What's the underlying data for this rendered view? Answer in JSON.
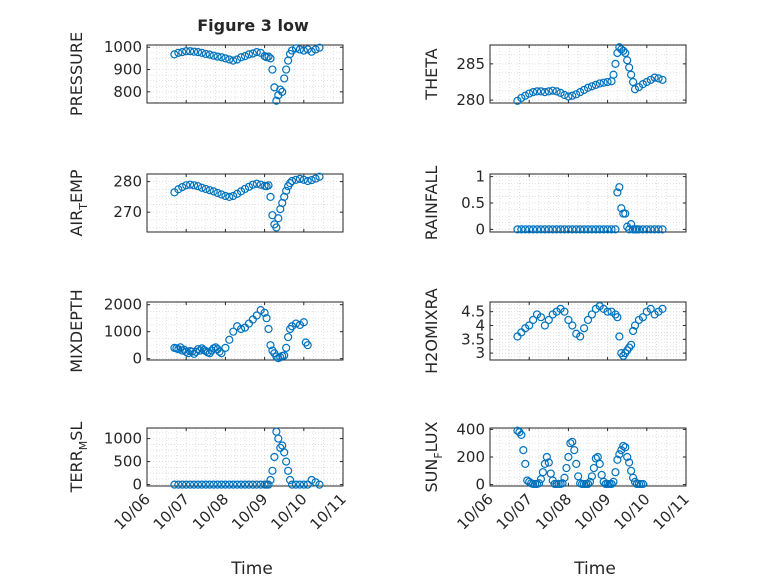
{
  "figure": {
    "title": "Figure 3 low",
    "xlabel": "Time",
    "time_ticks": [
      "10/06",
      "10/07",
      "10/08",
      "10/09",
      "10/10",
      "10/11"
    ],
    "marker_color": "#0072bd",
    "grid": true
  },
  "chart_data": [
    {
      "type": "scatter",
      "name": "pressure",
      "title": "Figure 3 low",
      "ylabel": "PRESSURE",
      "xlim": [
        0,
        5
      ],
      "ylim": [
        750,
        1010
      ],
      "yticks": [
        800,
        900,
        1000
      ],
      "x": [
        0.7,
        0.8,
        0.9,
        1.0,
        1.1,
        1.2,
        1.3,
        1.4,
        1.5,
        1.6,
        1.7,
        1.8,
        1.9,
        2.0,
        2.1,
        2.2,
        2.3,
        2.4,
        2.5,
        2.6,
        2.7,
        2.8,
        2.9,
        3.0,
        3.05,
        3.1,
        3.15,
        3.2,
        3.25,
        3.3,
        3.35,
        3.4,
        3.45,
        3.5,
        3.55,
        3.6,
        3.65,
        3.7,
        3.8,
        3.9,
        4.0,
        4.1,
        4.2,
        4.3,
        4.4
      ],
      "y": [
        968,
        975,
        978,
        982,
        982,
        980,
        978,
        975,
        970,
        967,
        962,
        958,
        955,
        950,
        945,
        940,
        945,
        955,
        960,
        968,
        972,
        978,
        975,
        960,
        955,
        958,
        950,
        900,
        820,
        760,
        785,
        810,
        800,
        860,
        900,
        940,
        970,
        985,
        995,
        990,
        985,
        990,
        980,
        990,
        998
      ]
    },
    {
      "type": "scatter",
      "name": "theta",
      "ylabel": "THETA",
      "xlim": [
        0,
        5
      ],
      "ylim": [
        279.6,
        287.6
      ],
      "yticks": [
        280,
        285
      ],
      "x": [
        0.7,
        0.8,
        0.9,
        1.0,
        1.1,
        1.2,
        1.3,
        1.4,
        1.5,
        1.6,
        1.7,
        1.8,
        1.9,
        2.0,
        2.1,
        2.2,
        2.3,
        2.4,
        2.5,
        2.6,
        2.7,
        2.8,
        2.9,
        3.0,
        3.1,
        3.15,
        3.2,
        3.25,
        3.3,
        3.35,
        3.4,
        3.45,
        3.5,
        3.55,
        3.6,
        3.65,
        3.7,
        3.8,
        3.9,
        4.0,
        4.1,
        4.2,
        4.3,
        4.4
      ],
      "y": [
        279.9,
        280.3,
        280.6,
        280.9,
        281.1,
        281.2,
        281.2,
        281.1,
        281.2,
        281.3,
        281.2,
        281.0,
        280.7,
        280.5,
        280.6,
        280.8,
        281.1,
        281.4,
        281.7,
        281.9,
        282.1,
        282.3,
        282.4,
        282.5,
        282.6,
        283.5,
        285.0,
        286.5,
        287.3,
        287.0,
        286.8,
        286.5,
        285.5,
        284.5,
        283.5,
        282.5,
        281.5,
        281.8,
        282.2,
        282.5,
        282.8,
        283.1,
        283.0,
        282.8
      ]
    },
    {
      "type": "scatter",
      "name": "air-temp",
      "ylabel": "AIR_TEMP",
      "xlim": [
        0,
        5
      ],
      "ylim": [
        263.5,
        282.5
      ],
      "yticks": [
        270,
        280
      ],
      "x": [
        0.7,
        0.8,
        0.9,
        1.0,
        1.1,
        1.2,
        1.3,
        1.4,
        1.5,
        1.6,
        1.7,
        1.8,
        1.9,
        2.0,
        2.1,
        2.2,
        2.3,
        2.4,
        2.5,
        2.6,
        2.7,
        2.8,
        2.9,
        3.0,
        3.05,
        3.1,
        3.15,
        3.2,
        3.25,
        3.3,
        3.35,
        3.4,
        3.45,
        3.5,
        3.55,
        3.6,
        3.65,
        3.7,
        3.8,
        3.9,
        4.0,
        4.1,
        4.2,
        4.3,
        4.4
      ],
      "y": [
        276.5,
        277.5,
        278.2,
        278.8,
        279.0,
        278.8,
        278.5,
        278.0,
        277.6,
        277.2,
        276.8,
        276.3,
        275.8,
        275.3,
        275.0,
        275.3,
        276.0,
        276.8,
        277.6,
        278.3,
        279.0,
        279.3,
        279.0,
        278.6,
        278.5,
        278.8,
        275,
        269,
        266,
        265,
        268,
        271,
        273,
        275,
        277,
        278.5,
        279.5,
        280.2,
        280.6,
        280.9,
        280.6,
        280.2,
        280.5,
        281.0,
        281.6
      ]
    },
    {
      "type": "scatter",
      "name": "rainfall",
      "ylabel": "RAINFALL",
      "xlim": [
        0,
        5
      ],
      "ylim": [
        -0.05,
        1.05
      ],
      "yticks": [
        0,
        0.5,
        1
      ],
      "x": [
        0.7,
        0.8,
        0.9,
        1.0,
        1.1,
        1.2,
        1.3,
        1.4,
        1.5,
        1.6,
        1.7,
        1.8,
        1.9,
        2.0,
        2.1,
        2.2,
        2.3,
        2.4,
        2.5,
        2.6,
        2.7,
        2.8,
        2.9,
        3.0,
        3.1,
        3.2,
        3.25,
        3.3,
        3.35,
        3.4,
        3.45,
        3.5,
        3.55,
        3.6,
        3.65,
        3.7,
        3.75,
        3.8,
        3.9,
        4.0,
        4.1,
        4.2,
        4.3,
        4.4
      ],
      "y": [
        0,
        0,
        0,
        0,
        0,
        0,
        0,
        0,
        0,
        0,
        0,
        0,
        0,
        0,
        0,
        0,
        0,
        0,
        0,
        0,
        0,
        0,
        0,
        0,
        0,
        0,
        0.7,
        0.8,
        0.4,
        0.3,
        0.3,
        0.05,
        0,
        0.1,
        0,
        0,
        0,
        0,
        0,
        0,
        0,
        0,
        0,
        0
      ]
    },
    {
      "type": "scatter",
      "name": "mixdepth",
      "ylabel": "MIXDEPTH",
      "xlim": [
        0,
        5
      ],
      "ylim": [
        -50,
        2100
      ],
      "yticks": [
        0,
        1000,
        2000
      ],
      "x": [
        0.7,
        0.75,
        0.8,
        0.85,
        0.9,
        0.95,
        1.0,
        1.05,
        1.1,
        1.15,
        1.2,
        1.25,
        1.3,
        1.35,
        1.4,
        1.45,
        1.5,
        1.55,
        1.6,
        1.65,
        1.7,
        1.75,
        1.8,
        1.85,
        1.9,
        2.0,
        2.1,
        2.2,
        2.3,
        2.4,
        2.5,
        2.6,
        2.7,
        2.8,
        2.9,
        3.0,
        3.05,
        3.1,
        3.15,
        3.2,
        3.25,
        3.3,
        3.35,
        3.4,
        3.45,
        3.5,
        3.55,
        3.6,
        3.65,
        3.7,
        3.8,
        3.9,
        4.0,
        4.05,
        4.1
      ],
      "y": [
        400,
        380,
        350,
        420,
        300,
        330,
        250,
        200,
        280,
        260,
        180,
        250,
        350,
        300,
        380,
        320,
        280,
        230,
        200,
        300,
        380,
        420,
        350,
        260,
        200,
        400,
        700,
        1000,
        1200,
        1100,
        1150,
        1300,
        1450,
        1600,
        1800,
        1700,
        1500,
        1100,
        500,
        300,
        200,
        80,
        20,
        50,
        100,
        120,
        400,
        800,
        1100,
        1200,
        1300,
        1250,
        1350,
        600,
        500
      ]
    },
    {
      "type": "scatter",
      "name": "h2omixra",
      "ylabel": "H2OMIXRA",
      "xlim": [
        0,
        5
      ],
      "ylim": [
        2.75,
        4.85
      ],
      "yticks": [
        3,
        3.5,
        4,
        4.5
      ],
      "x": [
        0.7,
        0.8,
        0.9,
        1.0,
        1.1,
        1.2,
        1.3,
        1.4,
        1.5,
        1.6,
        1.7,
        1.8,
        1.9,
        2.0,
        2.1,
        2.2,
        2.3,
        2.4,
        2.5,
        2.6,
        2.7,
        2.8,
        2.9,
        3.0,
        3.1,
        3.2,
        3.25,
        3.3,
        3.35,
        3.4,
        3.45,
        3.5,
        3.55,
        3.6,
        3.65,
        3.7,
        3.8,
        3.9,
        4.0,
        4.1,
        4.2,
        4.3,
        4.4
      ],
      "y": [
        3.6,
        3.75,
        3.9,
        4.0,
        4.2,
        4.4,
        4.3,
        4.0,
        4.2,
        4.4,
        4.5,
        4.6,
        4.5,
        4.2,
        4.0,
        3.7,
        3.6,
        3.9,
        4.2,
        4.4,
        4.6,
        4.7,
        4.6,
        4.5,
        4.5,
        4.4,
        4.3,
        3.6,
        3.0,
        2.9,
        3.0,
        3.1,
        3.2,
        3.3,
        3.8,
        4.0,
        4.2,
        4.3,
        4.5,
        4.6,
        4.4,
        4.5,
        4.6
      ]
    },
    {
      "type": "scatter",
      "name": "terr-msl",
      "ylabel": "TERR_MSL",
      "xlim": [
        0,
        5
      ],
      "ylim": [
        -30,
        1230
      ],
      "yticks": [
        0,
        500,
        1000
      ],
      "x": [
        0.7,
        0.8,
        0.9,
        1.0,
        1.1,
        1.2,
        1.3,
        1.4,
        1.5,
        1.6,
        1.7,
        1.8,
        1.9,
        2.0,
        2.1,
        2.2,
        2.3,
        2.4,
        2.5,
        2.6,
        2.7,
        2.8,
        2.9,
        3.0,
        3.05,
        3.1,
        3.15,
        3.2,
        3.25,
        3.3,
        3.35,
        3.4,
        3.45,
        3.5,
        3.55,
        3.6,
        3.65,
        3.7,
        3.8,
        3.9,
        4.0,
        4.1,
        4.2,
        4.3,
        4.4
      ],
      "y": [
        0,
        0,
        0,
        0,
        0,
        0,
        0,
        0,
        0,
        0,
        0,
        0,
        0,
        0,
        0,
        0,
        0,
        0,
        0,
        0,
        0,
        0,
        0,
        0,
        0,
        0,
        100,
        300,
        600,
        1150,
        1000,
        800,
        850,
        700,
        500,
        300,
        100,
        0,
        0,
        0,
        0,
        0,
        100,
        50,
        0
      ]
    },
    {
      "type": "scatter",
      "name": "sun-flux",
      "ylabel": "SUN_FLUX",
      "xlim": [
        0,
        5
      ],
      "ylim": [
        -10,
        410
      ],
      "yticks": [
        0,
        200,
        400
      ],
      "x": [
        0.7,
        0.75,
        0.8,
        0.85,
        0.9,
        0.95,
        1.0,
        1.05,
        1.1,
        1.15,
        1.2,
        1.25,
        1.3,
        1.35,
        1.4,
        1.45,
        1.5,
        1.55,
        1.6,
        1.65,
        1.7,
        1.75,
        1.8,
        1.85,
        1.9,
        1.95,
        2.0,
        2.05,
        2.1,
        2.15,
        2.2,
        2.25,
        2.3,
        2.35,
        2.4,
        2.45,
        2.5,
        2.55,
        2.6,
        2.65,
        2.7,
        2.75,
        2.8,
        2.85,
        2.9,
        2.95,
        3.0,
        3.05,
        3.1,
        3.15,
        3.2,
        3.25,
        3.3,
        3.35,
        3.4,
        3.45,
        3.5,
        3.55,
        3.6,
        3.65,
        3.7,
        3.75,
        3.8,
        3.85,
        3.9
      ],
      "y": [
        390,
        380,
        360,
        250,
        150,
        30,
        20,
        10,
        5,
        5,
        5,
        10,
        40,
        90,
        150,
        200,
        160,
        80,
        30,
        5,
        5,
        5,
        5,
        10,
        50,
        120,
        200,
        300,
        310,
        250,
        150,
        60,
        10,
        5,
        5,
        5,
        5,
        20,
        60,
        120,
        190,
        200,
        150,
        70,
        20,
        5,
        5,
        5,
        5,
        20,
        90,
        180,
        220,
        250,
        280,
        270,
        200,
        160,
        100,
        50,
        20,
        5,
        5,
        5,
        5
      ]
    }
  ]
}
